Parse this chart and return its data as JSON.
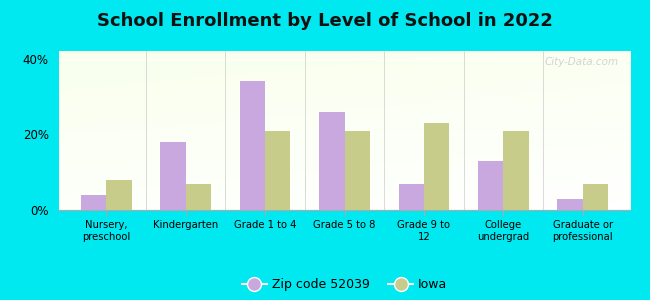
{
  "title": "School Enrollment by Level of School in 2022",
  "categories": [
    "Nursery,\npreschool",
    "Kindergarten",
    "Grade 1 to 4",
    "Grade 5 to 8",
    "Grade 9 to\n12",
    "College\nundergrad",
    "Graduate or\nprofessional"
  ],
  "zip_values": [
    4,
    18,
    34,
    26,
    7,
    13,
    3
  ],
  "iowa_values": [
    8,
    7,
    21,
    21,
    23,
    21,
    7
  ],
  "zip_color": "#c9a8e0",
  "iowa_color": "#c8cc8a",
  "background_outer": "#00e8f0",
  "background_inner": "#e8f5e0",
  "title_fontsize": 13,
  "ylabel_ticks": [
    0,
    20,
    40
  ],
  "ylim": [
    0,
    42
  ],
  "zip_label": "Zip code 52039",
  "iowa_label": "Iowa",
  "watermark": "City-Data.com",
  "bar_width": 0.32
}
